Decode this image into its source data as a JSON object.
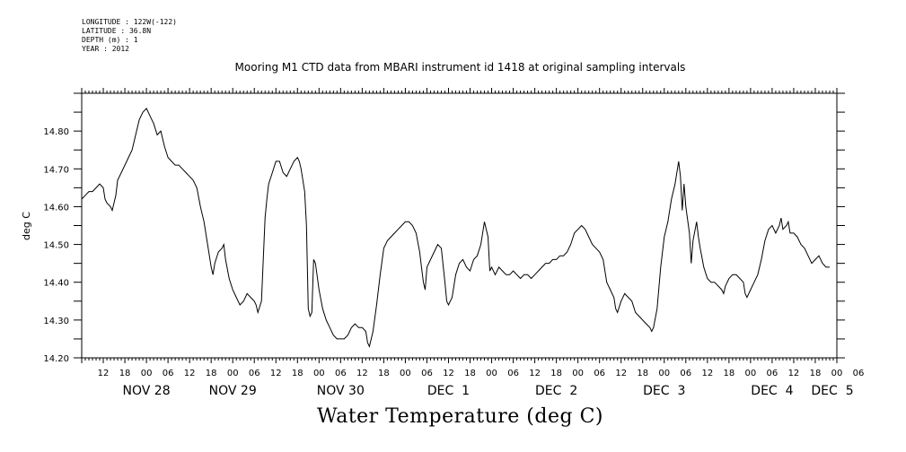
{
  "header": {
    "longitude": "LONGITUDE : 122W(-122)",
    "latitude": "LATITUDE : 36.8N",
    "depth": "DEPTH (m) : 1",
    "year": "YEAR : 2012"
  },
  "chart_data": {
    "type": "line",
    "title": "Mooring M1 CTD data from MBARI instrument id 1418 at original sampling intervals",
    "ylabel": "deg C",
    "xlabel": "Water Temperature (deg C)",
    "ylim": [
      14.2,
      14.9
    ],
    "xlim_hours": [
      0,
      210
    ],
    "y_ticks": [
      "14.20",
      "14.30",
      "14.40",
      "14.50",
      "14.60",
      "14.70",
      "14.80"
    ],
    "x_hour_ticks": [
      "12",
      "18",
      "00",
      "06",
      "12",
      "18",
      "00",
      "06",
      "12",
      "18",
      "00",
      "06",
      "12",
      "18",
      "00",
      "06",
      "12",
      "18",
      "00",
      "06",
      "12",
      "18",
      "00",
      "06",
      "12",
      "18",
      "00",
      "06",
      "12",
      "18",
      "00",
      "06",
      "12",
      "18",
      "00",
      "06"
    ],
    "x_day_labels": [
      "NOV 28",
      "NOV 29",
      "NOV 30",
      "DEC  1",
      "DEC  2",
      "DEC  3",
      "DEC  4",
      "DEC  5"
    ],
    "grid": false,
    "series": [
      {
        "points": [
          [
            0,
            14.62
          ],
          [
            1,
            14.63
          ],
          [
            2,
            14.64
          ],
          [
            3,
            14.64
          ],
          [
            4,
            14.65
          ],
          [
            5,
            14.66
          ],
          [
            6,
            14.65
          ],
          [
            6.5,
            14.62
          ],
          [
            7,
            14.61
          ],
          [
            8,
            14.6
          ],
          [
            8.5,
            14.59
          ],
          [
            9,
            14.61
          ],
          [
            9.5,
            14.63
          ],
          [
            10,
            14.67
          ],
          [
            11,
            14.69
          ],
          [
            12,
            14.71
          ],
          [
            13,
            14.73
          ],
          [
            14,
            14.75
          ],
          [
            15,
            14.79
          ],
          [
            15.5,
            14.81
          ],
          [
            16,
            14.83
          ],
          [
            17,
            14.85
          ],
          [
            18,
            14.86
          ],
          [
            19,
            14.84
          ],
          [
            20,
            14.82
          ],
          [
            21,
            14.79
          ],
          [
            22,
            14.8
          ],
          [
            23,
            14.76
          ],
          [
            24,
            14.73
          ],
          [
            25,
            14.72
          ],
          [
            26,
            14.71
          ],
          [
            27,
            14.71
          ],
          [
            28,
            14.7
          ],
          [
            29,
            14.69
          ],
          [
            30,
            14.68
          ],
          [
            31,
            14.67
          ],
          [
            32,
            14.65
          ],
          [
            33,
            14.6
          ],
          [
            34,
            14.56
          ],
          [
            35,
            14.5
          ],
          [
            36,
            14.44
          ],
          [
            36.5,
            14.42
          ],
          [
            37,
            14.45
          ],
          [
            38,
            14.48
          ],
          [
            39,
            14.49
          ],
          [
            39.5,
            14.5
          ],
          [
            40,
            14.46
          ],
          [
            41,
            14.41
          ],
          [
            42,
            14.38
          ],
          [
            43,
            14.36
          ],
          [
            44,
            14.34
          ],
          [
            45,
            14.35
          ],
          [
            46,
            14.37
          ],
          [
            47,
            14.36
          ],
          [
            48,
            14.35
          ],
          [
            48.5,
            14.34
          ],
          [
            49,
            14.32
          ],
          [
            50,
            14.35
          ],
          [
            51,
            14.57
          ],
          [
            51.5,
            14.62
          ],
          [
            52,
            14.66
          ],
          [
            53,
            14.69
          ],
          [
            54,
            14.72
          ],
          [
            55,
            14.72
          ],
          [
            56,
            14.69
          ],
          [
            57,
            14.68
          ],
          [
            58,
            14.7
          ],
          [
            59,
            14.72
          ],
          [
            60,
            14.73
          ],
          [
            60.5,
            14.72
          ],
          [
            61,
            14.7
          ],
          [
            62,
            14.64
          ],
          [
            62.5,
            14.55
          ],
          [
            63,
            14.33
          ],
          [
            63.5,
            14.31
          ],
          [
            64,
            14.32
          ],
          [
            64.5,
            14.46
          ],
          [
            65,
            14.45
          ],
          [
            66,
            14.38
          ],
          [
            67,
            14.33
          ],
          [
            68,
            14.3
          ],
          [
            69,
            14.28
          ],
          [
            70,
            14.26
          ],
          [
            71,
            14.25
          ],
          [
            72,
            14.25
          ],
          [
            73,
            14.25
          ],
          [
            74,
            14.26
          ],
          [
            75,
            14.28
          ],
          [
            76,
            14.29
          ],
          [
            77,
            14.28
          ],
          [
            78,
            14.28
          ],
          [
            79,
            14.27
          ],
          [
            79.5,
            14.24
          ],
          [
            80,
            14.23
          ],
          [
            81,
            14.27
          ],
          [
            82,
            14.34
          ],
          [
            83,
            14.42
          ],
          [
            84,
            14.49
          ],
          [
            85,
            14.51
          ],
          [
            86,
            14.52
          ],
          [
            87,
            14.53
          ],
          [
            88,
            14.54
          ],
          [
            89,
            14.55
          ],
          [
            90,
            14.56
          ],
          [
            91,
            14.56
          ],
          [
            92,
            14.55
          ],
          [
            93,
            14.53
          ],
          [
            94,
            14.48
          ],
          [
            94.5,
            14.44
          ],
          [
            95,
            14.4
          ],
          [
            95.5,
            14.38
          ],
          [
            96,
            14.44
          ],
          [
            97,
            14.46
          ],
          [
            98,
            14.48
          ],
          [
            99,
            14.5
          ],
          [
            100,
            14.49
          ],
          [
            101,
            14.4
          ],
          [
            101.5,
            14.35
          ],
          [
            102,
            14.34
          ],
          [
            103,
            14.36
          ],
          [
            104,
            14.42
          ],
          [
            105,
            14.45
          ],
          [
            106,
            14.46
          ],
          [
            107,
            14.44
          ],
          [
            108,
            14.43
          ],
          [
            109,
            14.46
          ],
          [
            110,
            14.47
          ],
          [
            111,
            14.5
          ],
          [
            111.5,
            14.53
          ],
          [
            112,
            14.56
          ],
          [
            113,
            14.52
          ],
          [
            113.5,
            14.43
          ],
          [
            114,
            14.44
          ],
          [
            115,
            14.42
          ],
          [
            116,
            14.44
          ],
          [
            117,
            14.43
          ],
          [
            118,
            14.42
          ],
          [
            119,
            14.42
          ],
          [
            120,
            14.43
          ],
          [
            121,
            14.42
          ],
          [
            122,
            14.41
          ],
          [
            123,
            14.42
          ],
          [
            124,
            14.42
          ],
          [
            125,
            14.41
          ],
          [
            126,
            14.42
          ],
          [
            127,
            14.43
          ],
          [
            128,
            14.44
          ],
          [
            129,
            14.45
          ],
          [
            130,
            14.45
          ],
          [
            131,
            14.46
          ],
          [
            132,
            14.46
          ],
          [
            133,
            14.47
          ],
          [
            134,
            14.47
          ],
          [
            135,
            14.48
          ],
          [
            136,
            14.5
          ],
          [
            137,
            14.53
          ],
          [
            138,
            14.54
          ],
          [
            139,
            14.55
          ],
          [
            140,
            14.54
          ],
          [
            141,
            14.52
          ],
          [
            142,
            14.5
          ],
          [
            143,
            14.49
          ],
          [
            144,
            14.48
          ],
          [
            145,
            14.46
          ],
          [
            146,
            14.4
          ],
          [
            147,
            14.38
          ],
          [
            148,
            14.36
          ],
          [
            148.5,
            14.33
          ],
          [
            149,
            14.32
          ],
          [
            150,
            14.35
          ],
          [
            151,
            14.37
          ],
          [
            152,
            14.36
          ],
          [
            153,
            14.35
          ],
          [
            154,
            14.32
          ],
          [
            155,
            14.31
          ],
          [
            156,
            14.3
          ],
          [
            157,
            14.29
          ],
          [
            158,
            14.28
          ],
          [
            158.5,
            14.27
          ],
          [
            159,
            14.28
          ],
          [
            160,
            14.33
          ],
          [
            161,
            14.44
          ],
          [
            162,
            14.52
          ],
          [
            163,
            14.56
          ],
          [
            164,
            14.62
          ],
          [
            165,
            14.66
          ],
          [
            166,
            14.72
          ],
          [
            166.5,
            14.68
          ],
          [
            167,
            14.59
          ],
          [
            167.5,
            14.66
          ],
          [
            168,
            14.6
          ],
          [
            169,
            14.53
          ],
          [
            169.5,
            14.45
          ],
          [
            170,
            14.51
          ],
          [
            171,
            14.56
          ],
          [
            171.5,
            14.52
          ],
          [
            172,
            14.49
          ],
          [
            173,
            14.44
          ],
          [
            174,
            14.41
          ],
          [
            175,
            14.4
          ],
          [
            176,
            14.4
          ],
          [
            177,
            14.39
          ],
          [
            178,
            14.38
          ],
          [
            178.5,
            14.37
          ],
          [
            179,
            14.39
          ],
          [
            180,
            14.41
          ],
          [
            181,
            14.42
          ],
          [
            182,
            14.42
          ],
          [
            183,
            14.41
          ],
          [
            184,
            14.4
          ],
          [
            184.5,
            14.37
          ],
          [
            185,
            14.36
          ],
          [
            186,
            14.38
          ],
          [
            187,
            14.4
          ],
          [
            188,
            14.42
          ],
          [
            189,
            14.46
          ],
          [
            190,
            14.51
          ],
          [
            191,
            14.54
          ],
          [
            192,
            14.55
          ],
          [
            193,
            14.53
          ],
          [
            194,
            14.55
          ],
          [
            194.5,
            14.57
          ],
          [
            195,
            14.54
          ],
          [
            196,
            14.55
          ],
          [
            196.5,
            14.56
          ],
          [
            197,
            14.53
          ],
          [
            198,
            14.53
          ],
          [
            199,
            14.52
          ],
          [
            200,
            14.5
          ],
          [
            201,
            14.49
          ],
          [
            202,
            14.47
          ],
          [
            203,
            14.45
          ],
          [
            204,
            14.46
          ],
          [
            205,
            14.47
          ],
          [
            206,
            14.45
          ],
          [
            207,
            14.44
          ],
          [
            208,
            14.44
          ]
        ]
      }
    ]
  }
}
